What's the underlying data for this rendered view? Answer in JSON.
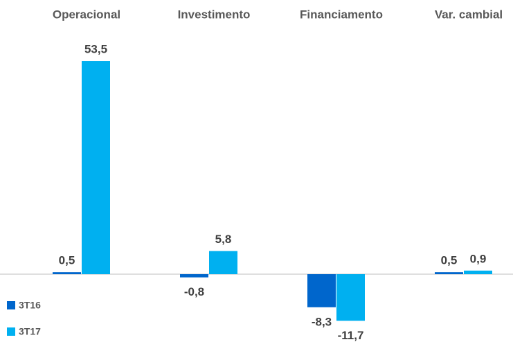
{
  "chart_data": {
    "type": "bar",
    "categories": [
      "Operacional",
      "Investimento",
      "Financiamento",
      "Var. cambial"
    ],
    "series": [
      {
        "name": "3T16",
        "color": "#0066cc",
        "values": [
          0.5,
          -0.8,
          -8.3,
          0.5
        ],
        "value_labels": [
          "0,5",
          "-0,8",
          "-8,3",
          "0,5"
        ]
      },
      {
        "name": "3T17",
        "color": "#00b0f0",
        "values": [
          53.5,
          5.8,
          -11.7,
          0.9
        ],
        "value_labels": [
          "53,5",
          "5,8",
          "-11,7",
          "0,9"
        ]
      }
    ],
    "ylim": [
      -15,
      55
    ],
    "legend": "bottom-left"
  }
}
